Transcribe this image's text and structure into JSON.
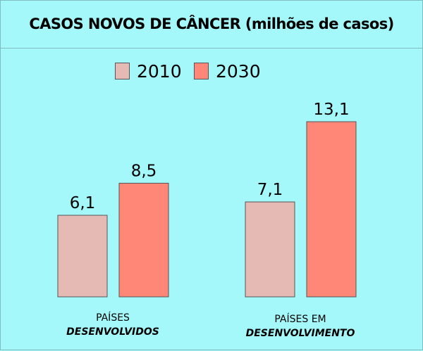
{
  "chart_data": {
    "type": "bar",
    "title": "CASOS NOVOS DE CÂNCER (milhões de casos)",
    "categories": [
      {
        "line1": "PAÍSES",
        "line2": "DESENVOLVIDOS"
      },
      {
        "line1": "PAÍSES EM",
        "line2": "DESENVOLVIMENTO"
      }
    ],
    "series": [
      {
        "name": "2010",
        "color": "#e6bab4",
        "values": [
          6.1,
          7.1
        ],
        "labels": [
          "6,1",
          "7,1"
        ]
      },
      {
        "name": "2030",
        "color": "#ff8778",
        "values": [
          8.5,
          13.1
        ],
        "labels": [
          "8,5",
          "13,1"
        ]
      }
    ],
    "xlabel": "",
    "ylabel": "",
    "ylim": [
      0,
      13.1
    ],
    "grid": false,
    "legend": "top-center"
  }
}
